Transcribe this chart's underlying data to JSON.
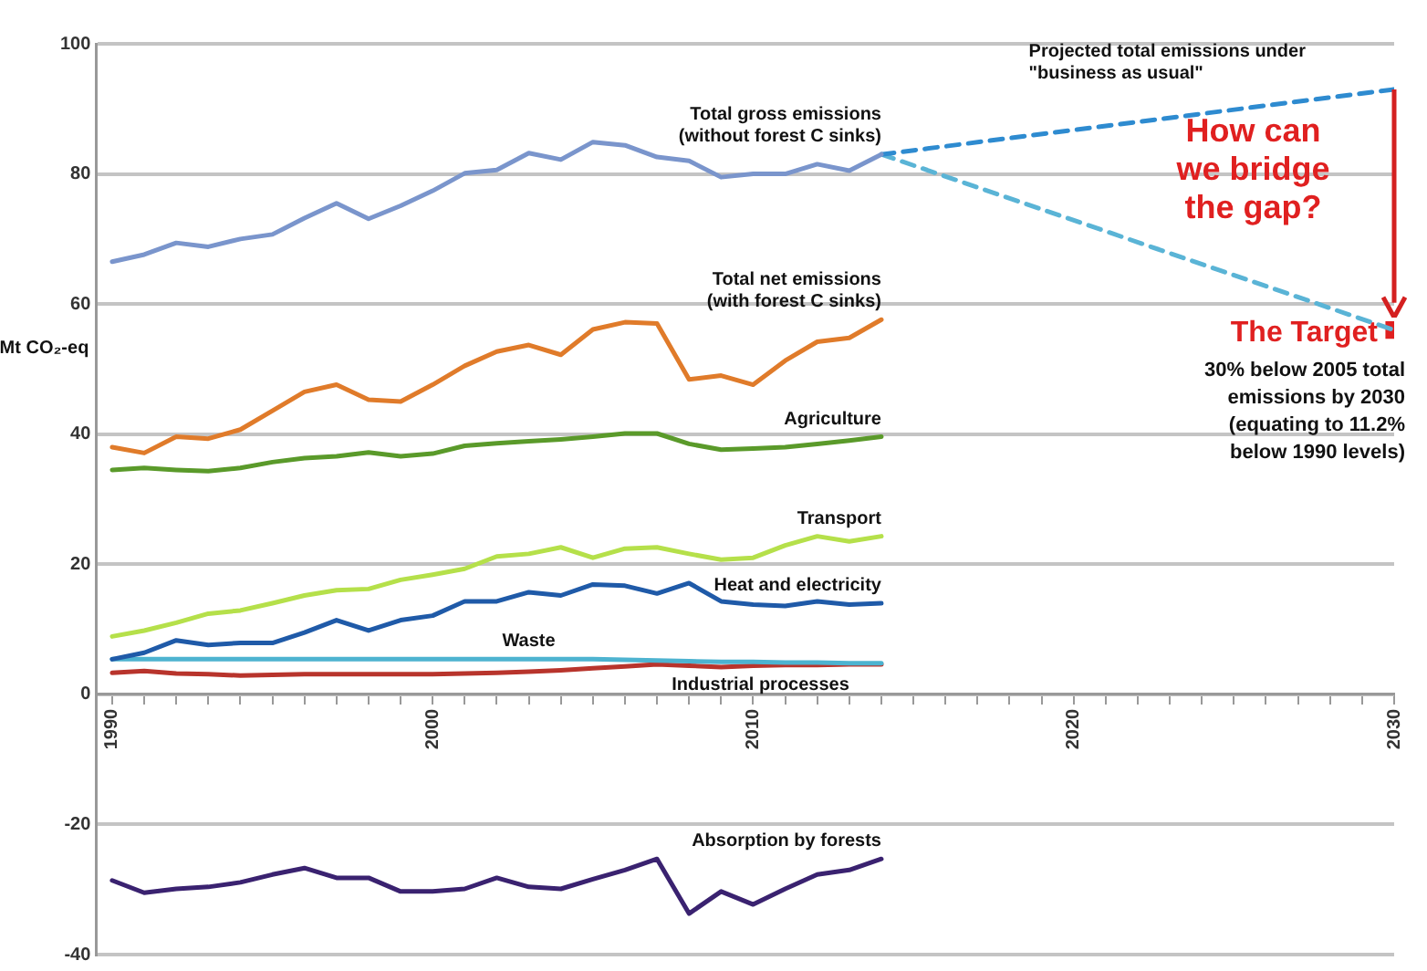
{
  "chart_data": {
    "type": "line",
    "ylabel": "Mt CO₂-eq",
    "x": [
      1990,
      1991,
      1992,
      1993,
      1994,
      1995,
      1996,
      1997,
      1998,
      1999,
      2000,
      2001,
      2002,
      2003,
      2004,
      2005,
      2006,
      2007,
      2008,
      2009,
      2010,
      2011,
      2012,
      2013,
      2014,
      2030
    ],
    "series": [
      {
        "name": "Total gross emissions\n(without forest C sinks)",
        "color": "#7a95cc",
        "values": [
          66.5,
          67.6,
          69.4,
          68.8,
          70,
          70.7,
          73.2,
          75.5,
          73.1,
          75.1,
          77.4,
          80.1,
          80.6,
          83.2,
          82.2,
          84.9,
          84.4,
          82.6,
          82,
          79.5,
          80,
          80,
          81.5,
          80.5,
          83,
          null
        ]
      },
      {
        "name": "Total net emissions\n(with forest C sinks)",
        "color": "#e07b2a",
        "values": [
          38,
          37.1,
          39.6,
          39.3,
          40.7,
          43.6,
          46.5,
          47.6,
          45.3,
          45,
          47.6,
          50.5,
          52.7,
          53.7,
          52.2,
          56.1,
          57.2,
          57,
          48.4,
          49,
          47.6,
          51.3,
          54.2,
          54.8,
          57.6,
          null
        ]
      },
      {
        "name": "Agriculture",
        "color": "#5a9a2a",
        "values": [
          34.5,
          34.8,
          34.5,
          34.3,
          34.8,
          35.7,
          36.3,
          36.6,
          37.2,
          36.6,
          37,
          38.2,
          38.6,
          38.9,
          39.2,
          39.6,
          40.1,
          40.1,
          38.5,
          37.6,
          37.8,
          38,
          38.5,
          39,
          39.6,
          null
        ]
      },
      {
        "name": "Transport",
        "color": "#b5e04a",
        "values": [
          8.9,
          9.8,
          11,
          12.4,
          12.9,
          14,
          15.2,
          16,
          16.2,
          17.6,
          18.4,
          19.3,
          21.2,
          21.6,
          22.6,
          21,
          22.4,
          22.6,
          21.6,
          20.7,
          21,
          22.9,
          24.3,
          23.5,
          24.3,
          null
        ]
      },
      {
        "name": "Heat and electricity",
        "color": "#1f5aa8",
        "values": [
          5.4,
          6.4,
          8.3,
          7.6,
          7.9,
          7.9,
          9.5,
          11.4,
          9.8,
          11.4,
          12.1,
          14.3,
          14.3,
          15.7,
          15.2,
          16.9,
          16.7,
          15.5,
          17.1,
          14.3,
          13.8,
          13.6,
          14.3,
          13.8,
          14,
          null
        ]
      },
      {
        "name": "Waste",
        "color": "#4db3d0",
        "values": [
          5.4,
          5.4,
          5.4,
          5.4,
          5.4,
          5.4,
          5.4,
          5.4,
          5.4,
          5.4,
          5.4,
          5.4,
          5.4,
          5.4,
          5.4,
          5.4,
          5.3,
          5.2,
          5.1,
          5,
          5,
          4.9,
          4.9,
          4.8,
          4.8,
          null
        ]
      },
      {
        "name": "Industrial processes",
        "color": "#b8342c",
        "values": [
          3.3,
          3.6,
          3.2,
          3.1,
          2.9,
          3,
          3.1,
          3.1,
          3.1,
          3.1,
          3.1,
          3.2,
          3.3,
          3.5,
          3.7,
          4,
          4.3,
          4.6,
          4.4,
          4.2,
          4.4,
          4.5,
          4.5,
          4.6,
          4.6,
          null
        ]
      },
      {
        "name": "Absorption by forests",
        "color": "#3a2270",
        "values": [
          -28.6,
          -30.5,
          -29.9,
          -29.6,
          -28.9,
          -27.7,
          -26.7,
          -28.2,
          -28.2,
          -30.3,
          -30.3,
          -29.9,
          -28.2,
          -29.6,
          -29.9,
          -28.4,
          -27,
          -25.3,
          -33.7,
          -30.3,
          -32.3,
          -29.9,
          -27.7,
          -27,
          -25.3,
          null
        ]
      },
      {
        "color": "#2e8bd0",
        "values": [
          null,
          null,
          null,
          null,
          null,
          null,
          null,
          null,
          null,
          null,
          null,
          null,
          null,
          null,
          null,
          null,
          null,
          null,
          null,
          null,
          null,
          null,
          null,
          null,
          83,
          93
        ],
        "line_style": "dashed"
      },
      {
        "color": "#5ab4d6",
        "values": [
          null,
          null,
          null,
          null,
          null,
          null,
          null,
          null,
          null,
          null,
          null,
          null,
          null,
          null,
          null,
          null,
          null,
          null,
          null,
          null,
          null,
          null,
          null,
          null,
          83,
          56
        ],
        "line_style": "dashed"
      },
      {
        "type": "scatter",
        "color": "#e02020",
        "values": [
          null,
          null,
          null,
          null,
          null,
          null,
          null,
          null,
          null,
          null,
          null,
          null,
          null,
          null,
          null,
          null,
          null,
          null,
          null,
          null,
          null,
          null,
          null,
          null,
          null,
          56
        ],
        "marker": "square"
      }
    ],
    "annotations": [
      "Projected total emissions under\n\"business as usual\"",
      "How can\nwe bridge\nthe gap?",
      {
        "text": "The Target",
        "x": 2030,
        "y": 56
      },
      "30% below 2005 total\nemissions by 2030\n(equating to 11.2%\nbelow 1990 levels)"
    ],
    "xlim": [
      1989.5,
      2030
    ],
    "xticks": [
      1990,
      {
        "value": 1991,
        "label": null
      },
      {
        "value": 1992,
        "label": null
      },
      {
        "value": 1993,
        "label": null
      },
      {
        "value": 1994,
        "label": null
      },
      {
        "value": 1995,
        "label": null
      },
      {
        "value": 1996,
        "label": null
      },
      {
        "value": 1997,
        "label": null
      },
      {
        "value": 1998,
        "label": null
      },
      {
        "value": 1999,
        "label": null
      },
      2000,
      {
        "value": 2001,
        "label": null
      },
      {
        "value": 2002,
        "label": null
      },
      {
        "value": 2003,
        "label": null
      },
      {
        "value": 2004,
        "label": null
      },
      {
        "value": 2005,
        "label": null
      },
      {
        "value": 2006,
        "label": null
      },
      {
        "value": 2007,
        "label": null
      },
      {
        "value": 2008,
        "label": null
      },
      {
        "value": 2009,
        "label": null
      },
      2010,
      {
        "value": 2011,
        "label": null
      },
      {
        "value": 2012,
        "label": null
      },
      {
        "value": 2013,
        "label": null
      },
      {
        "value": 2014,
        "label": null
      },
      {
        "value": 2015,
        "label": null
      },
      {
        "value": 2016,
        "label": null
      },
      {
        "value": 2017,
        "label": null
      },
      {
        "value": 2018,
        "label": null
      },
      {
        "value": 2019,
        "label": null
      },
      2020,
      {
        "value": 2021,
        "label": null
      },
      {
        "value": 2022,
        "label": null
      },
      {
        "value": 2023,
        "label": null
      },
      {
        "value": 2024,
        "label": null
      },
      {
        "value": 2025,
        "label": null
      },
      {
        "value": 2026,
        "label": null
      },
      {
        "value": 2027,
        "label": null
      },
      {
        "value": 2028,
        "label": null
      },
      {
        "value": 2029,
        "label": null
      },
      2030
    ],
    "ylim": [
      -40,
      100
    ],
    "yticks": [
      -40,
      -20,
      0,
      20,
      40,
      60,
      80,
      100
    ],
    "grid": "y",
    "legend": false,
    "marker": "none",
    "line_style": "solid"
  }
}
